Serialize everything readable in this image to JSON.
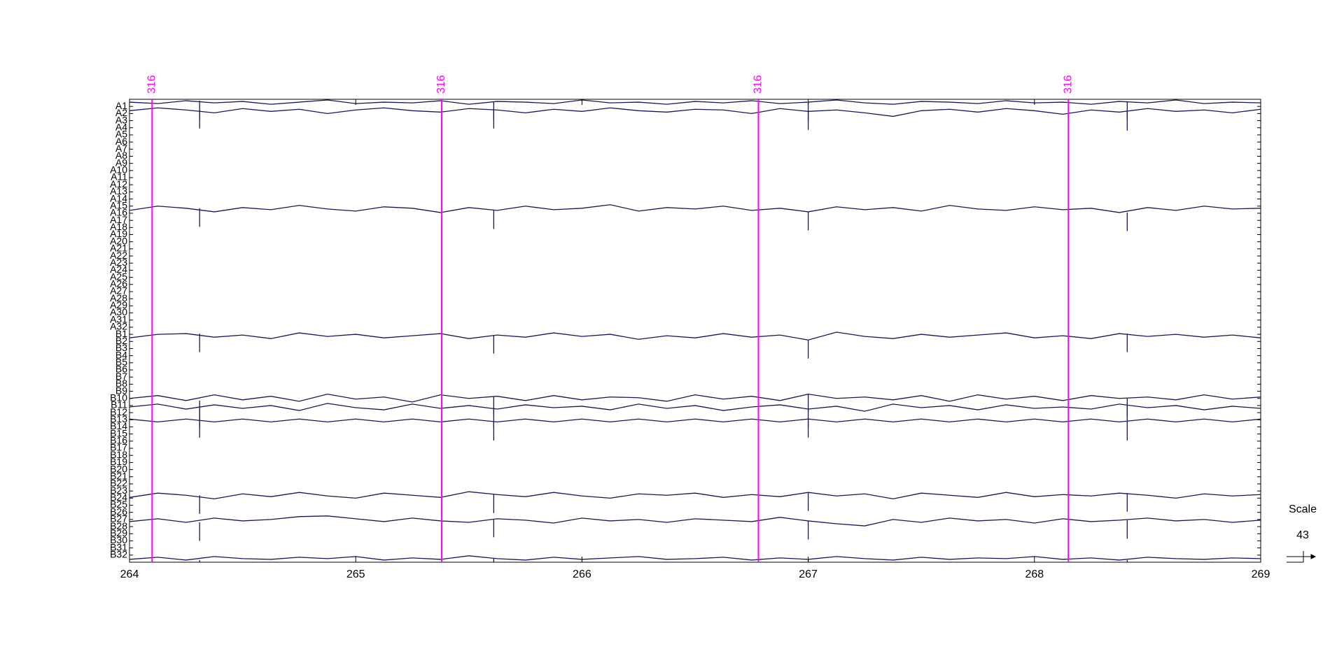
{
  "chart_data": {
    "type": "line",
    "xlim": [
      264,
      269
    ],
    "xticks": [
      264,
      265,
      266,
      267,
      268,
      269
    ],
    "ylim": [
      -1,
      64
    ],
    "y_inverted": true,
    "categories": [
      "A1",
      "A2",
      "A3",
      "A4",
      "A5",
      "A6",
      "A7",
      "A8",
      "A9",
      "A10",
      "A11",
      "A12",
      "A13",
      "A14",
      "A15",
      "A16",
      "A17",
      "A18",
      "A19",
      "A20",
      "A21",
      "A22",
      "A23",
      "A24",
      "A25",
      "A26",
      "A27",
      "A28",
      "A29",
      "A30",
      "A31",
      "A32",
      "B1",
      "B2",
      "B3",
      "B4",
      "B5",
      "B6",
      "B7",
      "B8",
      "B9",
      "B10",
      "B11",
      "B12",
      "B13",
      "B14",
      "B15",
      "B16",
      "B17",
      "B18",
      "B19",
      "B20",
      "B21",
      "B22",
      "B23",
      "B24",
      "B25",
      "B26",
      "B27",
      "B28",
      "B29",
      "B30",
      "B31",
      "B32"
    ],
    "x": [
      264,
      264.125,
      264.25,
      264.375,
      264.5,
      264.625,
      264.75,
      264.875,
      265,
      265.125,
      265.25,
      265.375,
      265.5,
      265.625,
      265.75,
      265.875,
      266,
      266.125,
      266.25,
      266.375,
      266.5,
      266.625,
      266.75,
      266.875,
      267,
      267.125,
      267.25,
      267.375,
      267.5,
      267.625,
      267.75,
      267.875,
      268,
      268.125,
      268.25,
      268.375,
      268.5,
      268.625,
      268.75,
      268.875,
      269
    ],
    "series": [
      {
        "color": "#16165e",
        "values": [
          -0.6,
          -0.4,
          -0.8,
          -0.5,
          -0.7,
          -0.3,
          -0.6,
          -0.9,
          -0.4,
          -0.6,
          -0.5,
          -0.8,
          -0.3,
          -0.7,
          -0.6,
          -0.4,
          -0.9,
          -0.5,
          -0.6,
          -0.3,
          -0.7,
          -0.5,
          -0.8,
          -0.4,
          -0.6,
          -0.9,
          -0.5,
          -0.3,
          -0.7,
          -0.6,
          -0.4,
          -0.8,
          -0.5,
          -0.6,
          -0.3,
          -0.7,
          -0.5,
          -0.9,
          -0.4,
          -0.6,
          -0.5
        ]
      },
      {
        "color": "#16165e",
        "values": [
          0.6,
          0.2,
          0.5,
          0.9,
          0.3,
          0.7,
          0.4,
          1.0,
          0.5,
          0.2,
          0.6,
          0.8,
          0.3,
          0.5,
          0.9,
          0.4,
          0.7,
          0.2,
          0.6,
          0.8,
          0.4,
          0.5,
          1.0,
          0.3,
          0.7,
          0.5,
          0.9,
          1.4,
          0.6,
          0.4,
          0.8,
          0.3,
          0.6,
          1.1,
          0.5,
          0.8,
          0.3,
          0.7,
          0.5,
          0.9,
          0.4
        ]
      },
      {
        "color": "#16165e",
        "values": [
          14.6,
          14.0,
          14.3,
          14.8,
          14.2,
          14.5,
          13.9,
          14.4,
          14.7,
          14.1,
          14.3,
          14.9,
          14.2,
          14.6,
          14.0,
          14.5,
          14.3,
          13.8,
          14.7,
          14.2,
          14.4,
          14.0,
          14.6,
          14.3,
          14.8,
          14.1,
          14.5,
          14.2,
          14.7,
          13.9,
          14.4,
          14.6,
          14.1,
          14.5,
          14.3,
          14.9,
          14.2,
          14.6,
          14.0,
          14.4,
          14.3
        ]
      },
      {
        "color": "#16165e",
        "values": [
          32.5,
          32.0,
          31.9,
          32.4,
          32.1,
          32.6,
          31.8,
          32.3,
          32.0,
          32.5,
          32.2,
          31.9,
          32.6,
          32.1,
          32.4,
          31.8,
          32.3,
          32.0,
          32.7,
          32.2,
          32.5,
          31.9,
          32.4,
          32.1,
          32.8,
          31.7,
          32.3,
          32.6,
          32.0,
          32.4,
          32.1,
          31.8,
          32.5,
          32.2,
          32.6,
          31.9,
          32.3,
          32.0,
          32.4,
          32.1,
          32.5
        ]
      },
      {
        "color": "#16165e",
        "values": [
          41.0,
          40.6,
          41.3,
          40.5,
          41.2,
          40.7,
          41.4,
          40.4,
          41.1,
          40.8,
          41.5,
          40.5,
          41.0,
          40.7,
          41.3,
          40.6,
          41.2,
          40.8,
          40.9,
          41.4,
          40.5,
          41.1,
          40.7,
          41.3,
          40.4,
          41.0,
          40.8,
          41.2,
          40.6,
          41.4,
          40.5,
          41.1,
          40.7,
          41.3,
          40.6,
          41.0,
          40.8,
          41.2,
          40.5,
          41.1,
          40.8
        ]
      },
      {
        "color": "#16165e",
        "values": [
          42.2,
          41.8,
          42.5,
          41.9,
          42.4,
          42.0,
          42.7,
          41.7,
          42.3,
          42.6,
          41.8,
          42.4,
          42.0,
          42.5,
          41.9,
          42.3,
          42.1,
          42.6,
          41.8,
          42.4,
          42.0,
          42.7,
          42.2,
          41.9,
          42.5,
          42.1,
          42.8,
          41.8,
          42.3,
          42.0,
          42.6,
          41.9,
          42.4,
          42.2,
          42.5,
          41.8,
          42.3,
          42.0,
          42.6,
          42.1,
          42.4
        ]
      },
      {
        "color": "#16165e",
        "values": [
          43.9,
          44.3,
          43.9,
          44.3,
          43.9,
          44.3,
          43.9,
          44.3,
          43.9,
          44.3,
          43.9,
          44.3,
          43.9,
          44.3,
          43.9,
          44.3,
          43.9,
          44.3,
          43.9,
          44.3,
          43.9,
          44.3,
          43.9,
          44.3,
          43.9,
          44.3,
          43.9,
          44.3,
          43.9,
          44.3,
          43.9,
          44.3,
          43.9,
          44.3,
          43.9,
          44.3,
          43.9,
          44.3,
          43.9,
          44.3,
          43.9
        ]
      },
      {
        "color": "#16165e",
        "values": [
          54.9,
          54.3,
          54.6,
          55.1,
          54.4,
          54.8,
          54.2,
          54.7,
          55.0,
          54.3,
          54.6,
          54.9,
          54.1,
          54.5,
          54.8,
          54.2,
          54.7,
          55.0,
          54.4,
          54.6,
          54.3,
          54.9,
          54.5,
          54.8,
          54.2,
          54.7,
          54.4,
          55.1,
          54.3,
          54.6,
          54.9,
          54.2,
          54.8,
          54.5,
          54.7,
          54.3,
          54.6,
          55.0,
          54.4,
          54.7,
          54.5
        ]
      },
      {
        "color": "#16165e",
        "values": [
          58.3,
          57.9,
          58.4,
          57.8,
          58.2,
          58.0,
          57.6,
          57.5,
          57.9,
          58.3,
          57.8,
          58.2,
          58.4,
          57.9,
          58.1,
          58.5,
          57.8,
          58.2,
          58.0,
          58.4,
          57.9,
          58.1,
          58.3,
          57.7,
          58.2,
          58.6,
          58.9,
          58.0,
          58.4,
          57.8,
          58.2,
          58.0,
          58.5,
          57.9,
          58.3,
          58.1,
          57.8,
          58.2,
          58.0,
          58.4,
          58.1
        ]
      },
      {
        "color": "#16165e",
        "values": [
          63.6,
          63.3,
          63.7,
          63.2,
          63.5,
          63.6,
          63.3,
          63.5,
          63.2,
          63.7,
          63.4,
          63.6,
          63.1,
          63.5,
          63.7,
          63.3,
          63.6,
          63.4,
          63.2,
          63.6,
          63.5,
          63.3,
          63.7,
          63.4,
          63.6,
          63.2,
          63.5,
          63.7,
          63.3,
          63.6,
          63.4,
          63.5,
          63.2,
          63.6,
          63.4,
          63.7,
          63.3,
          63.5,
          63.6,
          63.4,
          63.5
        ]
      }
    ],
    "artifacts": [
      264.31,
      265.61,
      267.0,
      268.41
    ],
    "markers": [
      {
        "x": 264.1,
        "label": "316"
      },
      {
        "x": 265.38,
        "label": "316"
      },
      {
        "x": 266.78,
        "label": "316"
      },
      {
        "x": 268.15,
        "label": "316"
      }
    ],
    "marker_color": "#ff00ff",
    "scale": {
      "title": "Scale",
      "value": 43
    }
  }
}
